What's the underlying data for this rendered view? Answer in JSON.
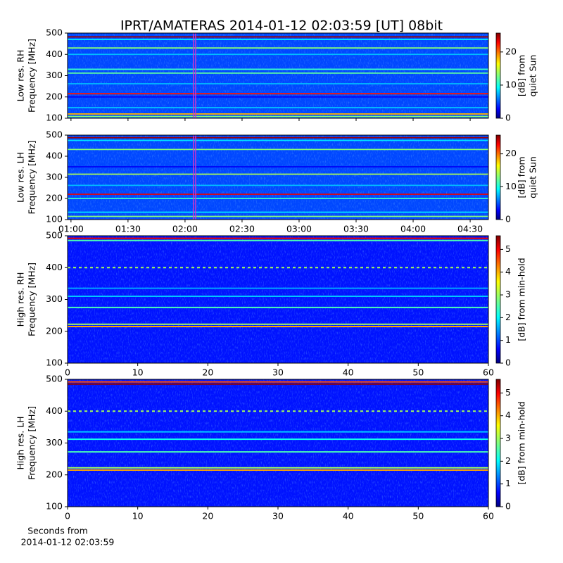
{
  "chart_data": [
    {
      "type": "heatmap",
      "title": "IPRT/AMATERAS 2014-01-12 02:03:59 [UT]   08bit",
      "ylabel": [
        "Low res. RH",
        "Frequency [MHz]"
      ],
      "xlim": [
        58.2,
        279.6
      ],
      "xticks": [
        60,
        90,
        120,
        150,
        180,
        210,
        240,
        270
      ],
      "ylim": [
        100,
        500
      ],
      "yticks": [
        100,
        200,
        300,
        400,
        500
      ],
      "marker": 125,
      "marker_color": "#cc33cc",
      "background": 5,
      "bands": [
        {
          "freq": 482,
          "db": 25
        },
        {
          "freq": 470,
          "db": 9
        },
        {
          "freq": 430,
          "db": 13
        },
        {
          "freq": 400,
          "db": 8
        },
        {
          "freq": 330,
          "db": 11
        },
        {
          "freq": 312,
          "db": 12
        },
        {
          "freq": 262,
          "db": 8
        },
        {
          "freq": 215,
          "db": 22
        },
        {
          "freq": 200,
          "db": 3
        },
        {
          "freq": 150,
          "db": 8
        },
        {
          "freq": 120,
          "db": 18
        },
        {
          "freq": 108,
          "db": 13
        }
      ],
      "colorbar": {
        "label": [
          "[dB] from",
          "quiet Sun"
        ],
        "lim": [
          0,
          25.7
        ],
        "ticks": [
          0,
          10,
          20
        ]
      }
    },
    {
      "type": "heatmap",
      "ylabel": [
        "Low res. LH",
        "Frequency [MHz]"
      ],
      "xlim": [
        58.2,
        279.6
      ],
      "xticks": [
        {
          "value": 60,
          "label": "01:00"
        },
        {
          "value": 90,
          "label": "01:30"
        },
        {
          "value": 120,
          "label": "02:00"
        },
        {
          "value": 150,
          "label": "02:30"
        },
        {
          "value": 180,
          "label": "03:00"
        },
        {
          "value": 210,
          "label": "03:30"
        },
        {
          "value": 240,
          "label": "04:00"
        },
        {
          "value": 270,
          "label": "04:30"
        }
      ],
      "ylim": [
        100,
        500
      ],
      "yticks": [
        100,
        200,
        300,
        400,
        500
      ],
      "marker": 125,
      "marker_color": "#cc33cc",
      "background": 5,
      "bands": [
        {
          "freq": 488,
          "db": 25
        },
        {
          "freq": 475,
          "db": 9
        },
        {
          "freq": 432,
          "db": 13
        },
        {
          "freq": 350,
          "db": 3
        },
        {
          "freq": 315,
          "db": 14
        },
        {
          "freq": 262,
          "db": 8
        },
        {
          "freq": 220,
          "db": 23
        },
        {
          "freq": 200,
          "db": 11
        },
        {
          "freq": 135,
          "db": 9
        },
        {
          "freq": 115,
          "db": 13
        }
      ],
      "colorbar": {
        "label": [
          "[dB] from",
          "quiet Sun"
        ],
        "lim": [
          0,
          25.7
        ],
        "ticks": [
          0,
          10,
          20
        ]
      }
    },
    {
      "type": "heatmap",
      "ylabel": [
        "High res. RH",
        "Frequency [MHz]"
      ],
      "xlim": [
        0,
        60
      ],
      "xticks": [
        0,
        10,
        20,
        30,
        40,
        50,
        60
      ],
      "ylim": [
        100,
        500
      ],
      "yticks": [
        100,
        200,
        300,
        400,
        500
      ],
      "background": 0.8,
      "bands": [
        {
          "freq": 492,
          "db": 5
        },
        {
          "freq": 485,
          "db": 2.5
        },
        {
          "freq": 400,
          "db": 3,
          "dashed": true
        },
        {
          "freq": 335,
          "db": 1.6
        },
        {
          "freq": 310,
          "db": 1.8
        },
        {
          "freq": 275,
          "db": 2.5
        },
        {
          "freq": 222,
          "db": 3
        },
        {
          "freq": 215,
          "db": 4
        }
      ],
      "colorbar": {
        "label": [
          "[dB] from min-hold"
        ],
        "lim": [
          0,
          5.6
        ],
        "ticks": [
          0,
          1,
          2,
          3,
          4,
          5
        ]
      }
    },
    {
      "type": "heatmap",
      "ylabel": [
        "High res. LH",
        "Frequency [MHz]"
      ],
      "xlabel": [
        "Seconds from",
        "2014-01-12 02:03:59"
      ],
      "xlim": [
        0,
        60
      ],
      "xticks": [
        0,
        10,
        20,
        30,
        40,
        50,
        60
      ],
      "ylim": [
        100,
        500
      ],
      "yticks": [
        100,
        200,
        300,
        400,
        500
      ],
      "background": 0.8,
      "bands": [
        {
          "freq": 492,
          "db": 4.5
        },
        {
          "freq": 485,
          "db": 5.5
        },
        {
          "freq": 400,
          "db": 3,
          "dashed": true
        },
        {
          "freq": 335,
          "db": 1.8
        },
        {
          "freq": 312,
          "db": 2.2
        },
        {
          "freq": 272,
          "db": 2.5
        },
        {
          "freq": 222,
          "db": 3
        },
        {
          "freq": 215,
          "db": 4
        }
      ],
      "colorbar": {
        "label": [
          "[dB] from min-hold"
        ],
        "lim": [
          0,
          5.6
        ],
        "ticks": [
          0,
          1,
          2,
          3,
          4,
          5
        ]
      }
    }
  ]
}
